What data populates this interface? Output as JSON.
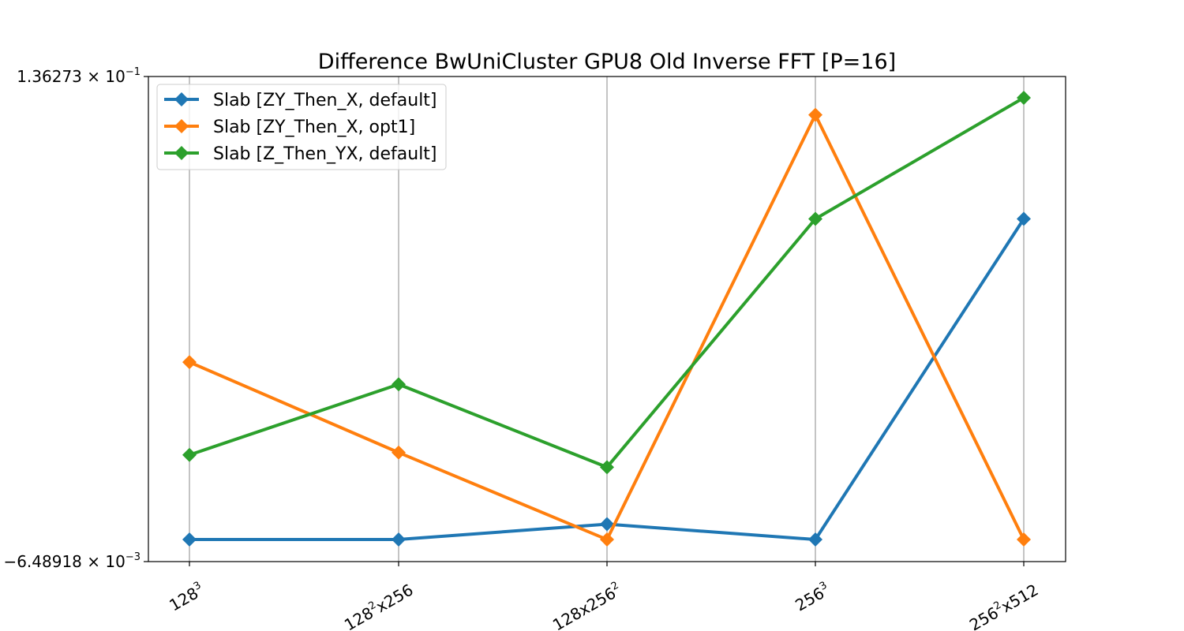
{
  "chart_data": {
    "type": "line",
    "title": "Difference BwUniCluster GPU8 Old Inverse FFT [P=16]",
    "xlabel": "",
    "ylabel": "",
    "categories": [
      {
        "base": "128",
        "sup": "3",
        "rest": ""
      },
      {
        "base": "128",
        "sup": "2",
        "rest": "x256"
      },
      {
        "base": "128x256",
        "sup": "2",
        "rest": ""
      },
      {
        "base": "256",
        "sup": "3",
        "rest": ""
      },
      {
        "base": "256",
        "sup": "2",
        "rest": "x512"
      }
    ],
    "y_ticks": [
      {
        "value": 0.136273,
        "mantissa": "1.36273",
        "exponent": "−1"
      },
      {
        "value": -0.00648918,
        "mantissa": "−6.48918",
        "exponent": "−3"
      }
    ],
    "ylim": [
      -0.00648918,
      0.136273
    ],
    "grid": "x-only",
    "legend_position": "upper-left",
    "series": [
      {
        "name": "Slab [ZY_Then_X, default]",
        "color": "#1f77b4",
        "values": [
          0,
          0,
          0.0045,
          0,
          0.094
        ]
      },
      {
        "name": "Slab [ZY_Then_X, opt1]",
        "color": "#ff7f0e",
        "values": [
          0.052,
          0.0255,
          0,
          0.1245,
          0
        ]
      },
      {
        "name": "Slab [Z_Then_YX, default]",
        "color": "#2ca02c",
        "values": [
          0.0248,
          0.0455,
          0.0212,
          0.094,
          0.1295
        ]
      }
    ]
  }
}
